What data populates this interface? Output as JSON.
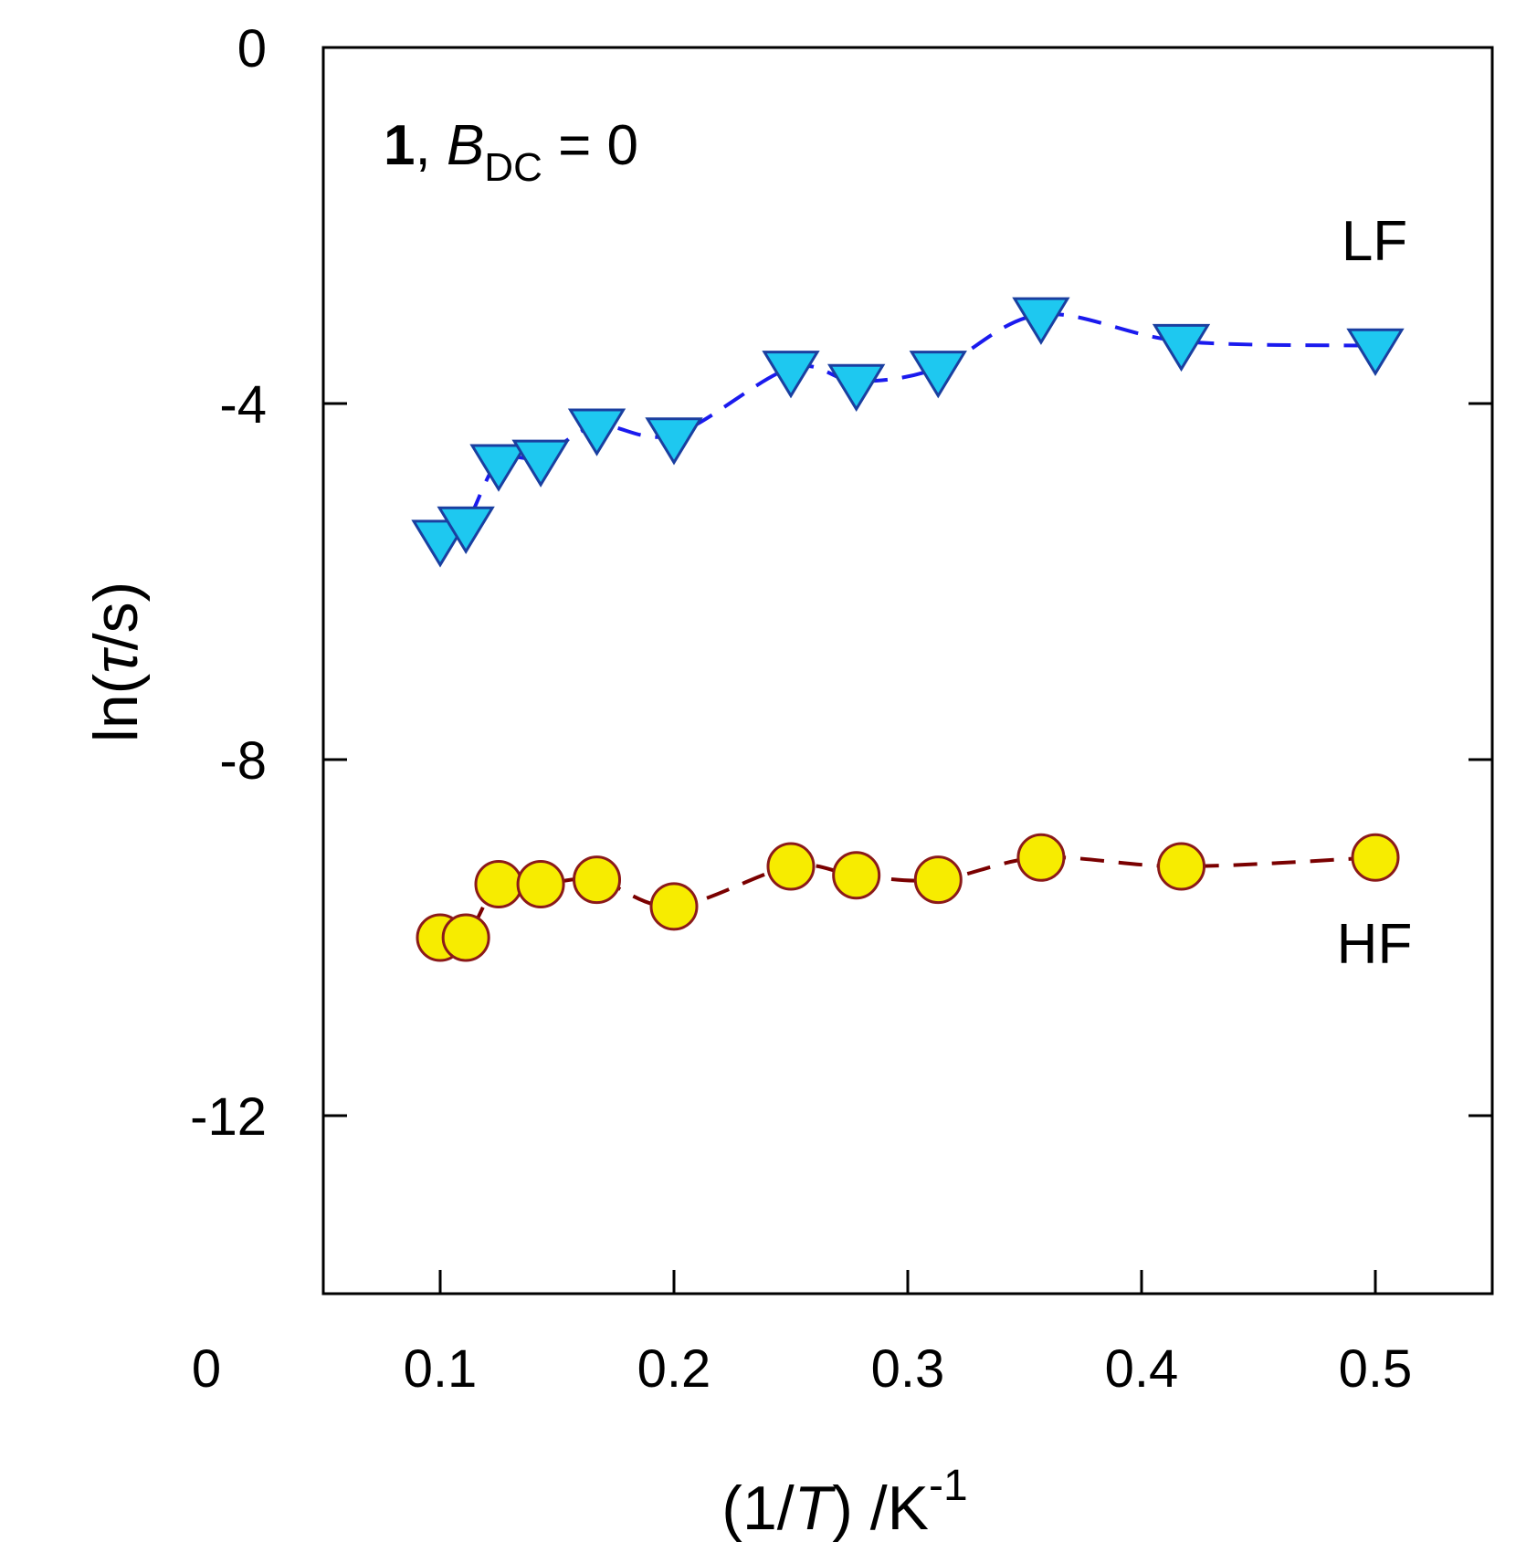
{
  "chart_data": {
    "type": "scatter",
    "title_parts": {
      "compound": "1",
      "sep": ", ",
      "var": "B",
      "sub": "DC",
      "rest": " = 0"
    },
    "xlabel_parts": {
      "pre": "(1/",
      "var": "T",
      "post": ") /K",
      "sup": "-1"
    },
    "ylabel_parts": {
      "pre": "ln(",
      "var": "τ",
      "post": "/s)"
    },
    "xlim": [
      0.05,
      0.55
    ],
    "ylim": [
      -14,
      0
    ],
    "x_origin_label": "0",
    "xticks": [
      0.1,
      0.2,
      0.3,
      0.4,
      0.5
    ],
    "xtick_labels": [
      "0.1",
      "0.2",
      "0.3",
      "0.4",
      "0.5"
    ],
    "yticks": [
      0,
      -4,
      -8,
      -12
    ],
    "ytick_labels": [
      "0",
      "-4",
      "-8",
      "-12"
    ],
    "series": [
      {
        "name": "LF",
        "marker": "triangle-down",
        "fill": "#1ec8f0",
        "stroke": "#1a3fa0",
        "line_color": "#1a1aee",
        "line_style": "dashed",
        "x": [
          0.1,
          0.111,
          0.125,
          0.143,
          0.167,
          0.2,
          0.25,
          0.278,
          0.313,
          0.357,
          0.417,
          0.5
        ],
        "y": [
          -5.5,
          -5.35,
          -4.65,
          -4.6,
          -4.25,
          -4.35,
          -3.6,
          -3.75,
          -3.6,
          -3.0,
          -3.3,
          -3.35
        ]
      },
      {
        "name": "HF",
        "marker": "circle",
        "fill": "#f7ec00",
        "stroke": "#8b1a1a",
        "line_color": "#7a0000",
        "line_style": "dashed",
        "x": [
          0.1,
          0.111,
          0.125,
          0.143,
          0.167,
          0.2,
          0.25,
          0.278,
          0.313,
          0.357,
          0.417,
          0.5
        ],
        "y": [
          -10.0,
          -10.0,
          -9.4,
          -9.4,
          -9.35,
          -9.65,
          -9.2,
          -9.3,
          -9.35,
          -9.1,
          -9.2,
          -9.1
        ]
      }
    ],
    "annotations": [
      {
        "text": "LF",
        "series": "LF"
      },
      {
        "text": "HF",
        "series": "HF"
      }
    ]
  }
}
